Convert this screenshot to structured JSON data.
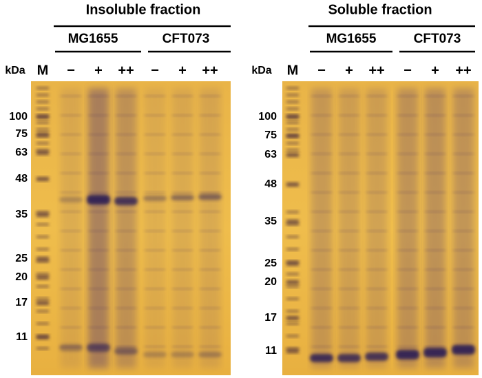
{
  "panels": [
    {
      "title": "Insoluble fraction",
      "unit": "kDa",
      "marker": "M",
      "groups": [
        {
          "name": "MG1655",
          "lanes": [
            "−",
            "+",
            "++"
          ]
        },
        {
          "name": "CFT073",
          "lanes": [
            "−",
            "+",
            "++"
          ]
        }
      ],
      "markers": [
        100,
        75,
        63,
        48,
        35,
        25,
        20,
        17,
        11
      ]
    },
    {
      "title": "Soluble fraction",
      "unit": "kDa",
      "marker": "M",
      "groups": [
        {
          "name": "MG1655",
          "lanes": [
            "−",
            "+",
            "++"
          ]
        },
        {
          "name": "CFT073",
          "lanes": [
            "−",
            "+",
            "++"
          ]
        }
      ],
      "markers": [
        100,
        75,
        63,
        48,
        35,
        25,
        20,
        17,
        11
      ]
    }
  ]
}
